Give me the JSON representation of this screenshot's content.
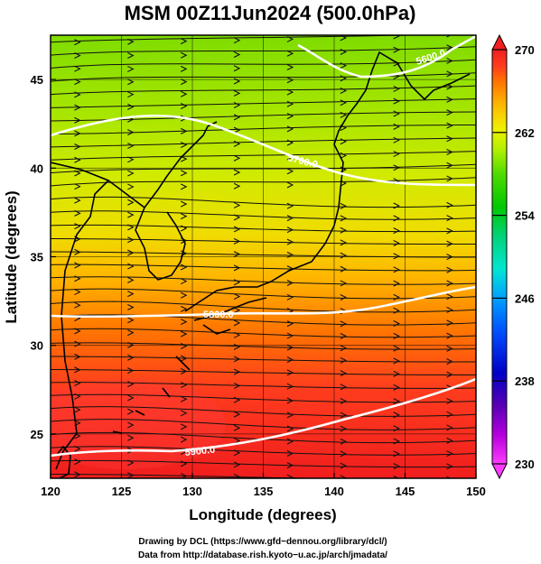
{
  "title": "MSM 00Z11Jun2024 (500.0hPa)",
  "axes": {
    "xlabel": "Longitude (degrees)",
    "ylabel": "Latitude  (degrees)",
    "x_ticks": [
      "120",
      "125",
      "130",
      "135",
      "140",
      "145",
      "150"
    ],
    "y_ticks": [
      "25",
      "30",
      "35",
      "40",
      "45"
    ],
    "x_range": [
      120,
      150
    ],
    "y_range": [
      22.5,
      47.5
    ]
  },
  "colorbar": {
    "min": 230,
    "max": 270,
    "tick_labels": [
      "270",
      "262",
      "254",
      "246",
      "238",
      "230"
    ],
    "colors": [
      "#ff3cff",
      "#b400dc",
      "#5a00b4",
      "#0000c8",
      "#0050ff",
      "#00a0ff",
      "#00e6d2",
      "#00d278",
      "#00c800",
      "#50dc00",
      "#b4f000",
      "#f0f000",
      "#ffb400",
      "#ff7800",
      "#ff3c1e",
      "#f01e1e"
    ]
  },
  "contours": [
    {
      "label": "5600.0"
    },
    {
      "label": "5700.0"
    },
    {
      "label": "5800.0"
    },
    {
      "label": "5900.0"
    }
  ],
  "footer": {
    "line1": "Drawing by DCL (https://www.gfd−dennou.org/library/dcl/)",
    "line2": "Data from http://database.rish.kyoto−u.ac.jp/arch/jmadata/"
  }
}
